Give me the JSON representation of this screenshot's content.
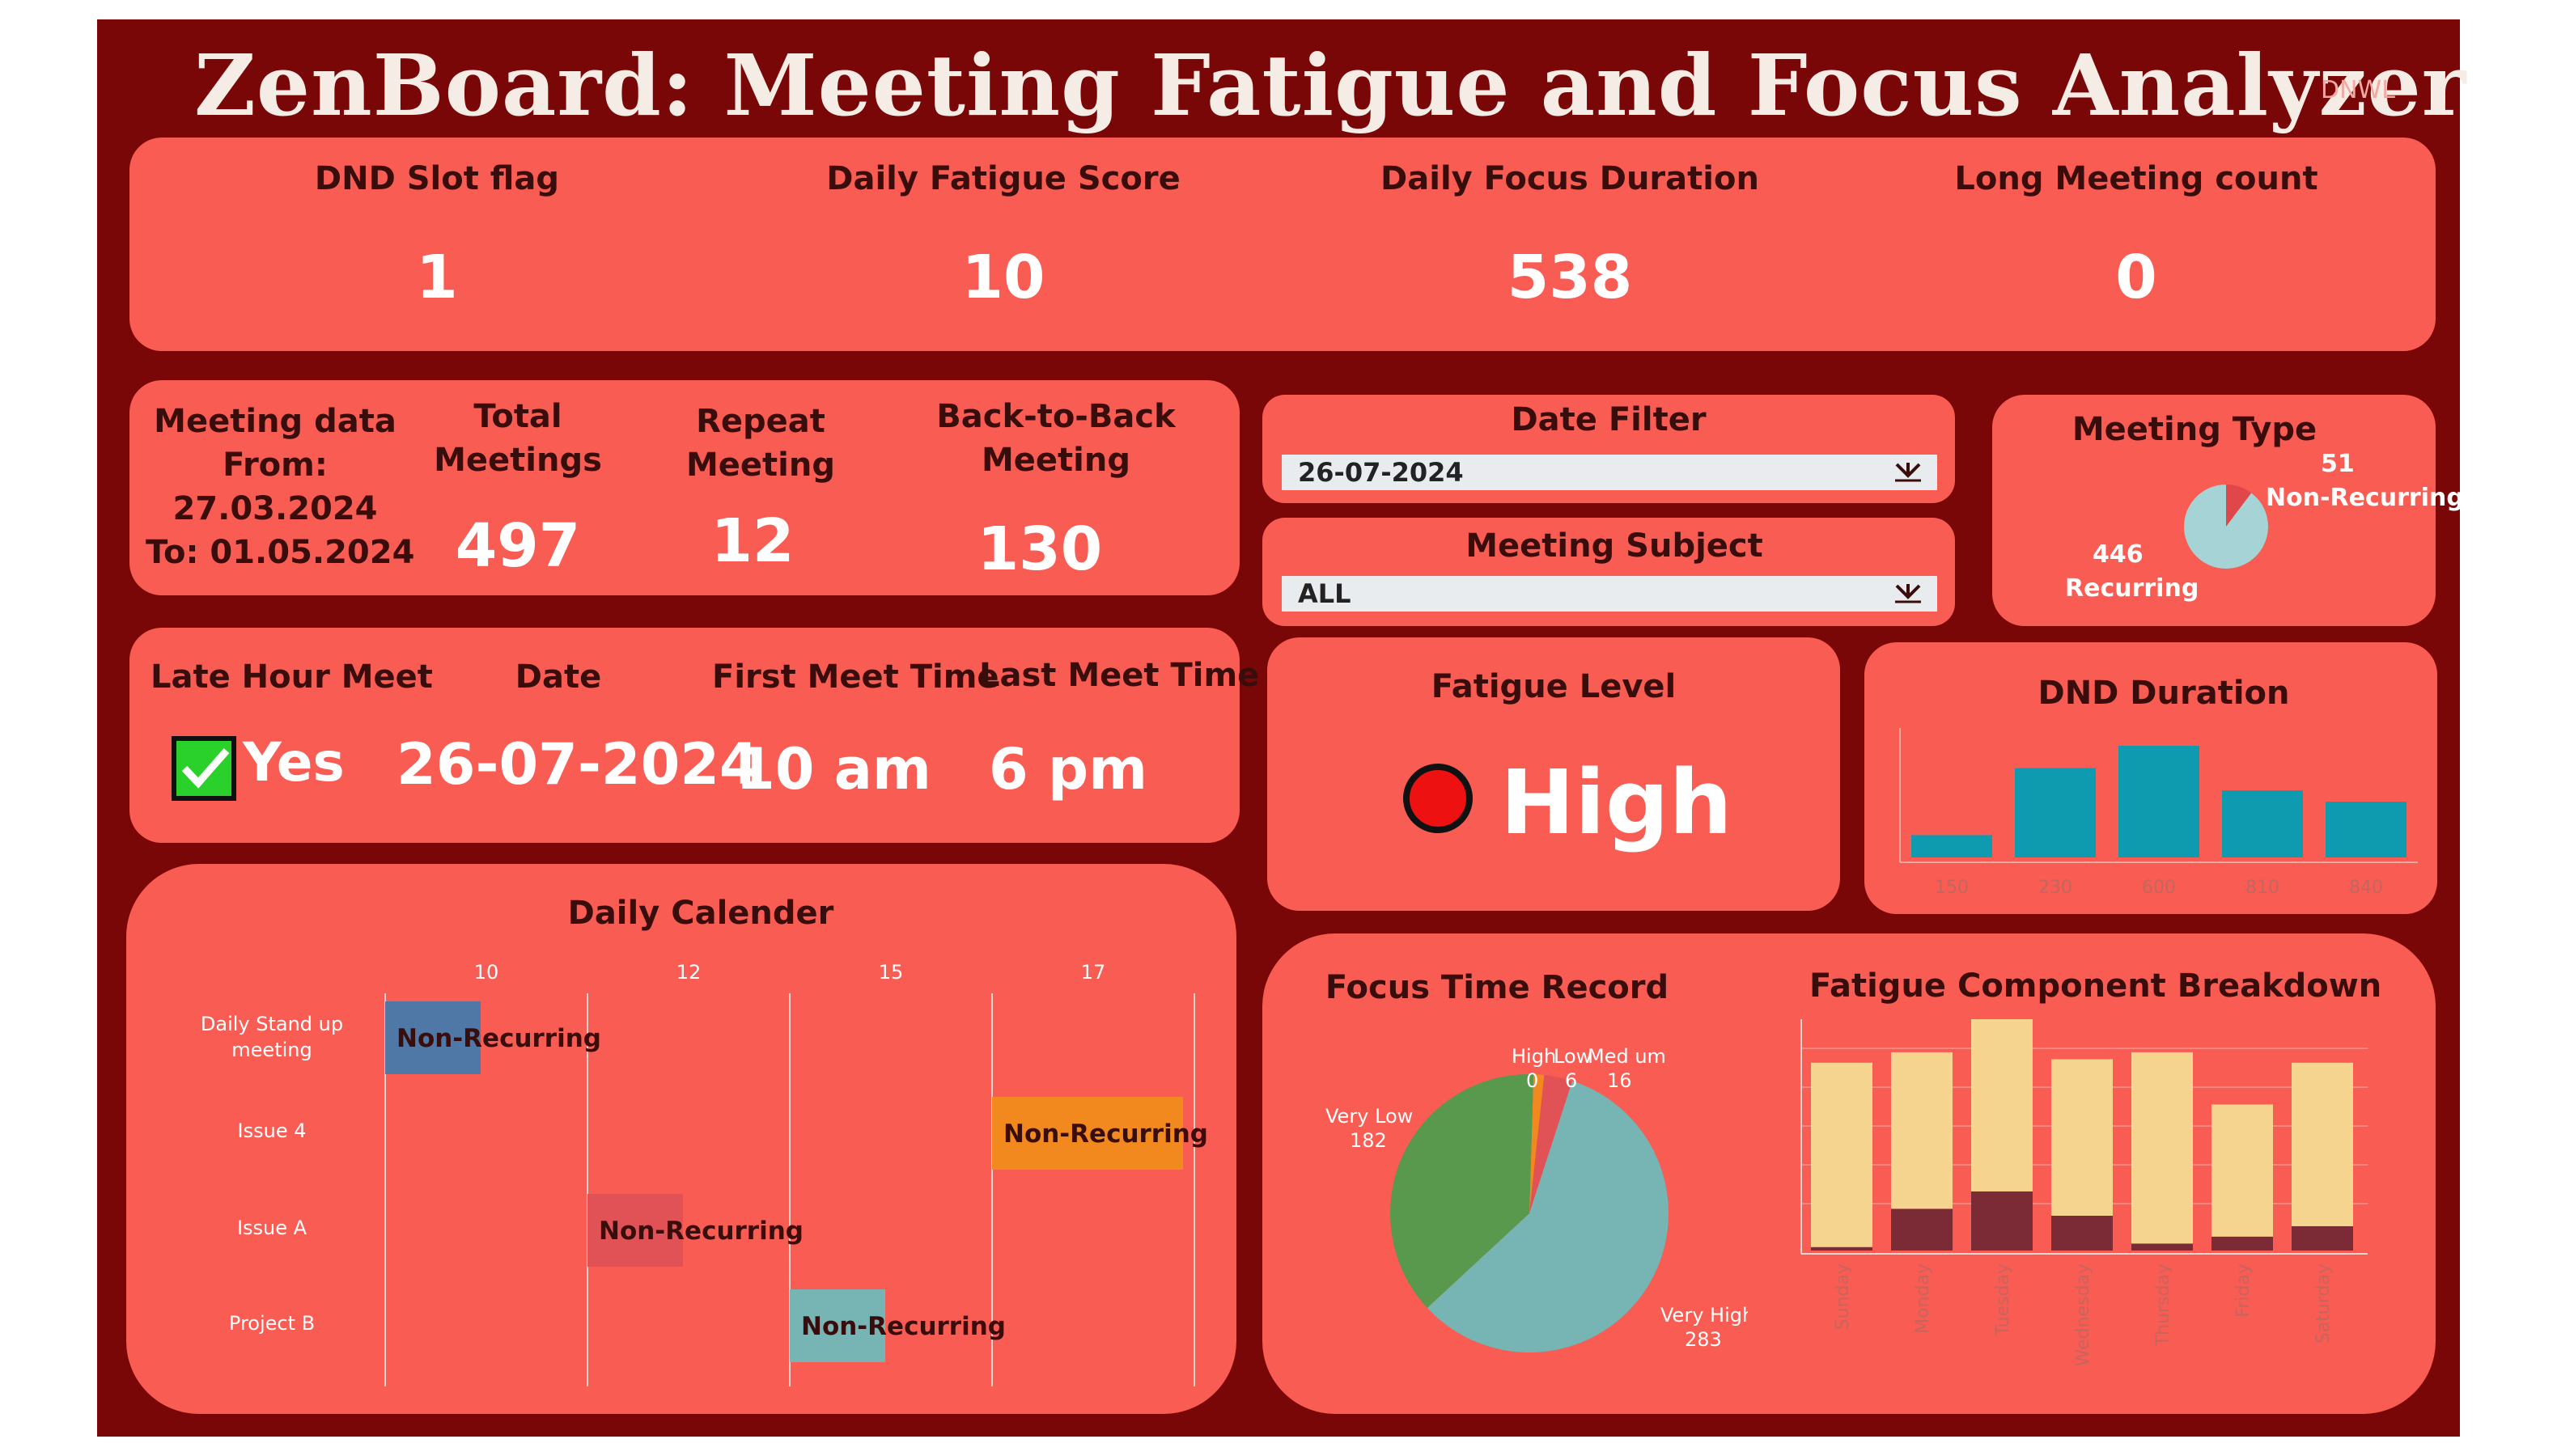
{
  "header": {
    "title": "ZenBoard: Meeting Fatigue and Focus Analyzer",
    "brand": "DNWL"
  },
  "kpis": [
    {
      "label": "DND Slot flag",
      "value": "1"
    },
    {
      "label": "Daily Fatigue Score",
      "value": "10"
    },
    {
      "label": "Daily Focus Duration",
      "value": "538"
    },
    {
      "label": "Long Meeting count",
      "value": "0"
    }
  ],
  "meeting_summary": {
    "range_lines": [
      "Meeting data",
      "From:",
      "27.03.2024",
      "To: 01.05.2024"
    ],
    "total_label": [
      "Total",
      "Meetings"
    ],
    "total_value": "497",
    "repeat_label": [
      "Repeat",
      "Meeting"
    ],
    "repeat_value": "12",
    "b2b_label": [
      "Back-to-Back",
      "Meeting"
    ],
    "b2b_value": "130"
  },
  "filters": {
    "date": {
      "label": "Date Filter",
      "value": "26-07-2024"
    },
    "subject": {
      "label": "Meeting Subject",
      "value": "ALL"
    }
  },
  "meeting_type": {
    "title": "Meeting Type",
    "non_recurring": {
      "label": "Non-Recurring",
      "value": "51",
      "color": "#e0474a"
    },
    "recurring": {
      "label": "Recurring",
      "value": "446",
      "color": "#a6d4d6"
    }
  },
  "late_hour": {
    "headers": {
      "late": "Late Hour Meet",
      "date": "Date",
      "first": "First Meet Time",
      "last": "Last Meet Time"
    },
    "late_value": "Yes",
    "date_value": "26-07-2024",
    "first_value": "10 am",
    "last_value": "6 pm"
  },
  "fatigue": {
    "title": "Fatigue Level",
    "value": "High",
    "status_color": "#ee1111"
  },
  "dnd": {
    "title": "DND Duration",
    "chart_data": {
      "type": "bar",
      "categories": [
        "150",
        "230",
        "600",
        "810",
        "840"
      ],
      "values": [
        1,
        4,
        5,
        3,
        2.5
      ],
      "color": "#0e9bb0"
    }
  },
  "calendar": {
    "title": "Daily Calender",
    "ticks": [
      "10",
      "12",
      "15",
      "17"
    ],
    "rows": [
      "Daily Stand up meeting",
      "Issue 4",
      "Issue A",
      "Project B"
    ],
    "bars": [
      {
        "row": 0,
        "start": 10,
        "end": 11,
        "label": "Non-Recurring",
        "color": "#4f78a6"
      },
      {
        "row": 1,
        "start": 17,
        "end": 18,
        "label": "Non-Recurring",
        "color": "#f2891f"
      },
      {
        "row": 2,
        "start": 12,
        "end": 13,
        "label": "Non-Recurring",
        "color": "#e05256"
      },
      {
        "row": 3,
        "start": 14,
        "end": 15,
        "label": "Non-Recurring",
        "color": "#76b5b3"
      }
    ]
  },
  "focus": {
    "title": "Focus Time Record",
    "chart_data": {
      "type": "pie",
      "slices": [
        {
          "label": "High",
          "value": 0,
          "color": "#4f78a6"
        },
        {
          "label": "Low",
          "value": 6,
          "color": "#f2891f"
        },
        {
          "label": "Medium",
          "value": 16,
          "color": "#e05256"
        },
        {
          "label": "Very High",
          "value": 283,
          "color": "#76b5b3"
        },
        {
          "label": "Very Low",
          "value": 182,
          "color": "#58994d"
        }
      ]
    },
    "labels": {
      "high": "High",
      "low": "Low",
      "medium": "Med um",
      "high_val": "0",
      "low_val": "6",
      "medium_val": "16",
      "very_low": "Very Low",
      "very_low_val": "182",
      "very_high": "Very High",
      "very_high_val": "283"
    }
  },
  "breakdown": {
    "title": "Fatigue Component Breakdown",
    "chart_data": {
      "type": "bar",
      "categories": [
        "Sunday",
        "Monday",
        "Tuesday",
        "Wednesday",
        "Thursday",
        "Friday",
        "Saturday"
      ],
      "series": [
        {
          "values": [
            1,
            12,
            17,
            10,
            2,
            4,
            7
          ],
          "color": "#7b2b36"
        },
        {
          "values": [
            53,
            45,
            50,
            45,
            55,
            38,
            47
          ],
          "color": "#f5d48f"
        }
      ]
    }
  }
}
